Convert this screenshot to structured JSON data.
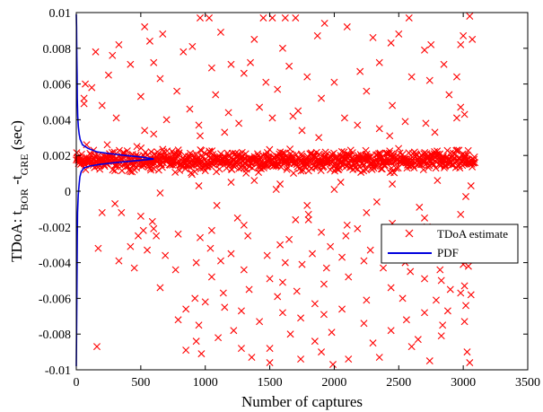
{
  "chart_data": {
    "type": "scatter",
    "xlabel": "Number of captures",
    "ylabel": {
      "prefix": "TDoA: t",
      "sub1": "BOR",
      "mid": " -t",
      "sub2": "GRE",
      "suffix": " (sec)"
    },
    "xlim": [
      0,
      3500
    ],
    "ylim": [
      -0.01,
      0.01
    ],
    "xticks": [
      0,
      500,
      1000,
      1500,
      2000,
      2500,
      3000,
      3500
    ],
    "xtick_labels": [
      "0",
      "500",
      "1000",
      "1500",
      "2000",
      "2500",
      "3000",
      "3500"
    ],
    "yticks": [
      -0.01,
      -0.008,
      -0.006,
      -0.004,
      -0.002,
      0,
      0.002,
      0.004,
      0.006,
      0.008,
      0.01
    ],
    "ytick_labels": [
      "-0.01",
      "-0.008",
      "-0.006",
      "-0.004",
      "-0.002",
      "0",
      "0.002",
      "0.004",
      "0.006",
      "0.008",
      "0.01"
    ],
    "grid": false,
    "legend_position": "right",
    "series": [
      {
        "name": "TDoA estimate",
        "type": "scatter",
        "marker": "x",
        "color": "#ff0000",
        "cluster": {
          "x_start": 0,
          "x_end": 3090,
          "center": 0.0017,
          "spread": 0.0008
        },
        "outliers": [
          [
            960,
            0.0097
          ],
          [
            1030,
            0.0097
          ],
          [
            1450,
            0.0097
          ],
          [
            1520,
            0.0097
          ],
          [
            1620,
            0.0097
          ],
          [
            1700,
            0.0097
          ],
          [
            2580,
            0.0097
          ],
          [
            3050,
            0.0098
          ],
          [
            530,
            0.0092
          ],
          [
            1925,
            0.0094
          ],
          [
            2100,
            0.0092
          ],
          [
            2500,
            0.0088
          ],
          [
            1120,
            0.0089
          ],
          [
            670,
            0.0088
          ],
          [
            3000,
            0.0087
          ],
          [
            1870,
            0.0087
          ],
          [
            1380,
            0.0085
          ],
          [
            2300,
            0.0086
          ],
          [
            330,
            0.0082
          ],
          [
            570,
            0.0084
          ],
          [
            2440,
            0.0083
          ],
          [
            2980,
            0.0082
          ],
          [
            3070,
            0.0085
          ],
          [
            150,
            0.0078
          ],
          [
            280,
            0.0076
          ],
          [
            900,
            0.0081
          ],
          [
            1600,
            0.008
          ],
          [
            2750,
            0.0082
          ],
          [
            830,
            0.0078
          ],
          [
            2700,
            0.0079
          ],
          [
            420,
            0.0071
          ],
          [
            600,
            0.0072
          ],
          [
            1200,
            0.0071
          ],
          [
            1350,
            0.0072
          ],
          [
            1650,
            0.007
          ],
          [
            2350,
            0.0072
          ],
          [
            2850,
            0.0071
          ],
          [
            1050,
            0.0069
          ],
          [
            2200,
            0.0067
          ],
          [
            250,
            0.0065
          ],
          [
            650,
            0.0063
          ],
          [
            1300,
            0.0066
          ],
          [
            1790,
            0.0064
          ],
          [
            2000,
            0.0061
          ],
          [
            2600,
            0.0064
          ],
          [
            2950,
            0.0064
          ],
          [
            70,
            0.006
          ],
          [
            120,
            0.0058
          ],
          [
            1470,
            0.0061
          ],
          [
            2740,
            0.0062
          ],
          [
            780,
            0.0056
          ],
          [
            1080,
            0.0054
          ],
          [
            1560,
            0.0057
          ],
          [
            2250,
            0.0056
          ],
          [
            2890,
            0.0054
          ],
          [
            60,
            0.0052
          ],
          [
            1900,
            0.0052
          ],
          [
            500,
            0.0053
          ],
          [
            200,
            0.0048
          ],
          [
            880,
            0.0046
          ],
          [
            1420,
            0.0047
          ],
          [
            1720,
            0.0045
          ],
          [
            2450,
            0.0048
          ],
          [
            2980,
            0.0047
          ],
          [
            1180,
            0.0044
          ],
          [
            310,
            0.0041
          ],
          [
            1680,
            0.0042
          ],
          [
            3010,
            0.0043
          ],
          [
            700,
            0.004
          ],
          [
            1520,
            0.0041
          ],
          [
            2080,
            0.0041
          ],
          [
            2550,
            0.0039
          ],
          [
            2950,
            0.0041
          ],
          [
            1260,
            0.0038
          ],
          [
            2710,
            0.0038
          ],
          [
            950,
            0.0037
          ],
          [
            2180,
            0.0037
          ],
          [
            530,
            0.0034
          ],
          [
            1750,
            0.0034
          ],
          [
            2350,
            0.0035
          ],
          [
            2780,
            0.0033
          ],
          [
            600,
            0.0032
          ],
          [
            960,
            0.0031
          ],
          [
            1880,
            0.003
          ],
          [
            2430,
            0.0031
          ],
          [
            1150,
            0.0033
          ],
          [
            80,
            0.0026
          ],
          [
            240,
            0.0026
          ],
          [
            470,
            0.0025
          ],
          [
            60,
            0.0049
          ],
          [
            1200,
            0.0005
          ],
          [
            950,
            0.0003
          ],
          [
            1580,
            0.0004
          ],
          [
            2050,
            0.0005
          ],
          [
            2450,
            0.0004
          ],
          [
            2800,
            0.0006
          ],
          [
            1550,
            0.0001
          ],
          [
            2000,
            0.0001
          ],
          [
            650,
            -0.0001
          ],
          [
            1380,
            0.0006
          ],
          [
            3060,
            0.0003
          ],
          [
            300,
            -0.0007
          ],
          [
            1090,
            -0.0008
          ],
          [
            2330,
            -0.0006
          ],
          [
            2660,
            -0.0009
          ],
          [
            1790,
            -0.0008
          ],
          [
            3020,
            -0.0003
          ],
          [
            200,
            -0.0012
          ],
          [
            350,
            -0.0012
          ],
          [
            500,
            -0.0014
          ],
          [
            1250,
            -0.0015
          ],
          [
            1800,
            -0.0013
          ],
          [
            2250,
            -0.0012
          ],
          [
            2700,
            -0.0015
          ],
          [
            2980,
            -0.0013
          ],
          [
            1700,
            -0.0016
          ],
          [
            590,
            -0.0017
          ],
          [
            1300,
            -0.0019
          ],
          [
            1800,
            -0.0016
          ],
          [
            2100,
            -0.0019
          ],
          [
            2450,
            -0.0018
          ],
          [
            2720,
            -0.002
          ],
          [
            520,
            -0.0022
          ],
          [
            600,
            -0.0021
          ],
          [
            1050,
            -0.0022
          ],
          [
            1900,
            -0.0023
          ],
          [
            2180,
            -0.0021
          ],
          [
            2540,
            -0.0023
          ],
          [
            2980,
            -0.0022
          ],
          [
            480,
            -0.0025
          ],
          [
            620,
            -0.0025
          ],
          [
            790,
            -0.0024
          ],
          [
            960,
            -0.0026
          ],
          [
            1330,
            -0.0025
          ],
          [
            1650,
            -0.0027
          ],
          [
            2090,
            -0.0025
          ],
          [
            2480,
            -0.0026
          ],
          [
            2810,
            -0.0025
          ],
          [
            170,
            -0.0032
          ],
          [
            420,
            -0.0031
          ],
          [
            550,
            -0.0033
          ],
          [
            1040,
            -0.0032
          ],
          [
            1580,
            -0.003
          ],
          [
            1970,
            -0.0031
          ],
          [
            2280,
            -0.0033
          ],
          [
            2710,
            -0.003
          ],
          [
            2880,
            -0.0033
          ],
          [
            690,
            -0.0036
          ],
          [
            1200,
            -0.0035
          ],
          [
            1480,
            -0.0036
          ],
          [
            1830,
            -0.0035
          ],
          [
            2060,
            -0.0037
          ],
          [
            2400,
            -0.0034
          ],
          [
            2950,
            -0.0036
          ],
          [
            330,
            -0.0039
          ],
          [
            930,
            -0.004
          ],
          [
            1120,
            -0.0039
          ],
          [
            1620,
            -0.004
          ],
          [
            1750,
            -0.0041
          ],
          [
            2230,
            -0.0039
          ],
          [
            2550,
            -0.004
          ],
          [
            3000,
            -0.0041
          ],
          [
            450,
            -0.0043
          ],
          [
            770,
            -0.0044
          ],
          [
            1300,
            -0.0044
          ],
          [
            1940,
            -0.0043
          ],
          [
            2590,
            -0.0045
          ],
          [
            2820,
            -0.0044
          ],
          [
            2380,
            -0.0043
          ],
          [
            3040,
            -0.0042
          ],
          [
            1050,
            -0.0048
          ],
          [
            1500,
            -0.0049
          ],
          [
            2110,
            -0.0048
          ],
          [
            2700,
            -0.0049
          ],
          [
            1600,
            -0.0051
          ],
          [
            2830,
            -0.005
          ],
          [
            1920,
            -0.0052
          ],
          [
            3010,
            -0.0053
          ],
          [
            650,
            -0.0054
          ],
          [
            1340,
            -0.0055
          ],
          [
            1710,
            -0.0056
          ],
          [
            2440,
            -0.0054
          ],
          [
            2900,
            -0.0055
          ],
          [
            2980,
            -0.0057
          ],
          [
            3060,
            -0.0058
          ],
          [
            1140,
            -0.0057
          ],
          [
            920,
            -0.006
          ],
          [
            1560,
            -0.0059
          ],
          [
            2250,
            -0.0061
          ],
          [
            2530,
            -0.006
          ],
          [
            2790,
            -0.0061
          ],
          [
            1000,
            -0.0062
          ],
          [
            1850,
            -0.0063
          ],
          [
            3020,
            -0.0064
          ],
          [
            850,
            -0.0066
          ],
          [
            1280,
            -0.0067
          ],
          [
            1600,
            -0.0068
          ],
          [
            2060,
            -0.0066
          ],
          [
            2700,
            -0.0068
          ],
          [
            1920,
            -0.0069
          ],
          [
            1150,
            -0.0065
          ],
          [
            2880,
            -0.0067
          ],
          [
            790,
            -0.0072
          ],
          [
            1420,
            -0.0073
          ],
          [
            1740,
            -0.0071
          ],
          [
            2230,
            -0.0074
          ],
          [
            2560,
            -0.0072
          ],
          [
            2840,
            -0.0075
          ],
          [
            950,
            -0.0075
          ],
          [
            3010,
            -0.0073
          ],
          [
            1220,
            -0.0078
          ],
          [
            1660,
            -0.008
          ],
          [
            1980,
            -0.0079
          ],
          [
            2440,
            -0.0078
          ],
          [
            2830,
            -0.0081
          ],
          [
            1100,
            -0.0082
          ],
          [
            2650,
            -0.0083
          ],
          [
            930,
            -0.0084
          ],
          [
            1850,
            -0.0084
          ],
          [
            2300,
            -0.0085
          ],
          [
            160,
            -0.0087
          ],
          [
            850,
            -0.0089
          ],
          [
            1280,
            -0.0088
          ],
          [
            1500,
            -0.0088
          ],
          [
            1900,
            -0.009
          ],
          [
            2600,
            -0.0087
          ],
          [
            3030,
            -0.009
          ],
          [
            970,
            -0.0091
          ],
          [
            1360,
            -0.0093
          ],
          [
            1740,
            -0.0094
          ],
          [
            2110,
            -0.0094
          ],
          [
            2350,
            -0.0093
          ],
          [
            2740,
            -0.0095
          ],
          [
            3050,
            -0.0096
          ],
          [
            1500,
            -0.0096
          ],
          [
            1990,
            -0.0097
          ]
        ]
      },
      {
        "name": "PDF",
        "type": "line",
        "color": "#0000dd",
        "x": [
          0,
          2,
          4,
          6,
          8,
          10,
          15,
          22,
          28,
          38,
          60,
          100,
          180,
          300,
          450,
          600,
          520,
          380,
          260,
          160,
          90,
          48,
          30,
          22,
          16,
          11,
          8,
          6,
          4,
          3,
          2,
          1,
          0
        ],
        "y": [
          -0.0098,
          -0.008,
          -0.006,
          -0.004,
          -0.0025,
          -0.0012,
          -0.0002,
          0.0004,
          0.0008,
          0.0011,
          0.0013,
          0.0014,
          0.0015,
          0.0016,
          0.0017,
          0.0018,
          0.0019,
          0.002,
          0.0021,
          0.0022,
          0.0024,
          0.0026,
          0.0029,
          0.0032,
          0.0036,
          0.0042,
          0.0052,
          0.0065,
          0.0075,
          0.0085,
          0.0092,
          0.0097,
          0.0099
        ]
      }
    ],
    "legend": [
      {
        "label": "TDoA estimate",
        "marker": "x",
        "color": "#ff0000"
      },
      {
        "label": "PDF",
        "marker": "line",
        "color": "#0000dd"
      }
    ]
  }
}
